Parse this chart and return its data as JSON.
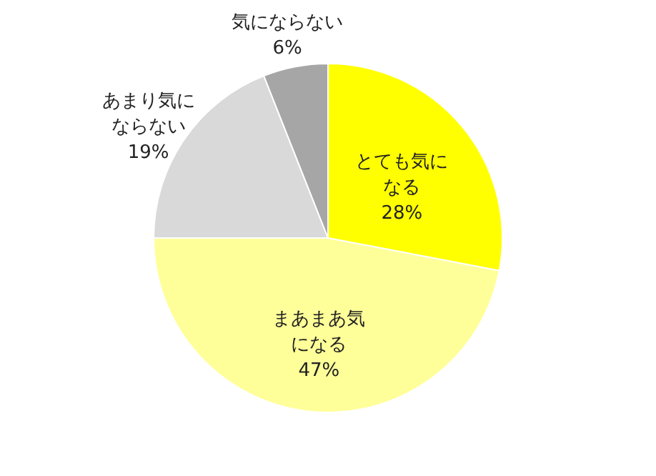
{
  "chart_data": {
    "type": "pie",
    "categories": [
      "とても気になる",
      "まあまあ気になる",
      "あまり気にならない",
      "気にならない"
    ],
    "values": [
      28,
      47,
      19,
      6
    ],
    "colors": [
      "#ffff00",
      "#ffff99",
      "#d9d9d9",
      "#a6a6a6"
    ],
    "value_labels": [
      "28%",
      "47%",
      "19%",
      "6%"
    ]
  }
}
